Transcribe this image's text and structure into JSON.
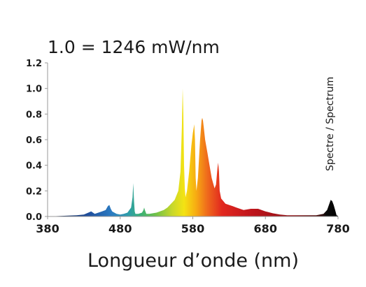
{
  "chart_data": {
    "type": "area",
    "title": "1.0 = 1246 mW/nm",
    "xlabel": "Longueur d’onde (nm)",
    "ylabel": "",
    "side_label": "Spectre / Spectrum",
    "xlim": [
      380,
      780
    ],
    "ylim": [
      0,
      1.2
    ],
    "xticks": [
      380,
      480,
      580,
      680,
      780
    ],
    "yticks": [
      0.0,
      0.2,
      0.4,
      0.6,
      0.8,
      1.0,
      1.2
    ],
    "ytick_labels": [
      "0.0",
      "0.2",
      "0.4",
      "0.6",
      "0.8",
      "1.0",
      "1.2"
    ],
    "grid": false,
    "series": [
      {
        "x": [
          380,
          400,
          420,
          430,
          440,
          445,
          450,
          455,
          460,
          463,
          465,
          467,
          469,
          472,
          475,
          480,
          485,
          490,
          495,
          497,
          498,
          499,
          500,
          501,
          503,
          505,
          510,
          512,
          513,
          514,
          516,
          520,
          530,
          540,
          545,
          550,
          555,
          560,
          563,
          565,
          566,
          567,
          568,
          569,
          570,
          572,
          575,
          578,
          580,
          582,
          583,
          584,
          585,
          587,
          590,
          592,
          593,
          594,
          595,
          597,
          600,
          603,
          606,
          610,
          612,
          614,
          615,
          616,
          617,
          619,
          622,
          625,
          630,
          635,
          640,
          645,
          650,
          660,
          670,
          680,
          690,
          700,
          710,
          720,
          730,
          740,
          750,
          760,
          765,
          768,
          770,
          772,
          774,
          776,
          778,
          780
        ],
        "y": [
          0.0,
          0.005,
          0.01,
          0.015,
          0.04,
          0.02,
          0.03,
          0.04,
          0.05,
          0.08,
          0.09,
          0.06,
          0.04,
          0.03,
          0.02,
          0.015,
          0.02,
          0.03,
          0.07,
          0.15,
          0.26,
          0.12,
          0.04,
          0.02,
          0.02,
          0.02,
          0.03,
          0.05,
          0.07,
          0.05,
          0.02,
          0.02,
          0.03,
          0.05,
          0.07,
          0.1,
          0.13,
          0.2,
          0.35,
          0.7,
          1.0,
          0.8,
          0.4,
          0.22,
          0.15,
          0.2,
          0.35,
          0.55,
          0.65,
          0.72,
          0.6,
          0.3,
          0.2,
          0.3,
          0.6,
          0.75,
          0.77,
          0.75,
          0.7,
          0.6,
          0.5,
          0.4,
          0.3,
          0.22,
          0.25,
          0.38,
          0.42,
          0.35,
          0.2,
          0.14,
          0.12,
          0.1,
          0.09,
          0.08,
          0.07,
          0.06,
          0.05,
          0.06,
          0.06,
          0.04,
          0.025,
          0.015,
          0.01,
          0.01,
          0.01,
          0.01,
          0.01,
          0.02,
          0.05,
          0.1,
          0.13,
          0.12,
          0.09,
          0.05,
          0.01,
          0.005
        ]
      }
    ]
  }
}
